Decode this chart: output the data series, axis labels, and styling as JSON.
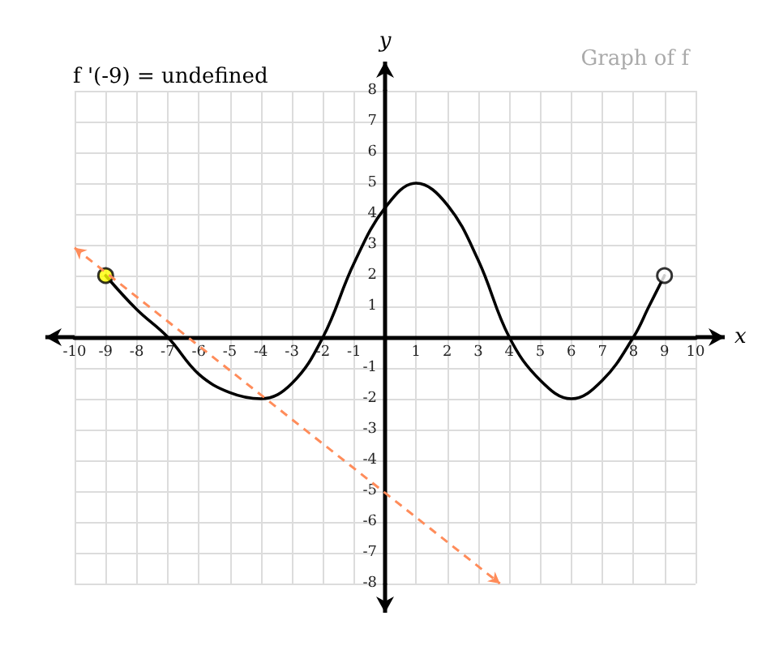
{
  "chart_data": {
    "type": "line",
    "title": "f '(-9) = undefined",
    "xlabel": "x",
    "ylabel": "y",
    "annotations": [
      "Graph of f"
    ],
    "xlim": [
      -10,
      10
    ],
    "ylim": [
      -8,
      8
    ],
    "xticks": [
      -10,
      -9,
      -8,
      -7,
      -6,
      -5,
      -4,
      -3,
      -2,
      -1,
      {
        "value": 0,
        "label": null
      },
      1,
      2,
      3,
      4,
      5,
      6,
      7,
      8,
      9,
      10
    ],
    "yticks": [
      -8,
      -7,
      -6,
      -5,
      -4,
      -3,
      -2,
      -1,
      {
        "value": 0,
        "label": null
      },
      1,
      2,
      3,
      4,
      5,
      6,
      7,
      8
    ],
    "grid": true,
    "marker": "none",
    "series": [
      {
        "color": "#000000",
        "x": [
          -9,
          -8,
          -7,
          -6,
          -5,
          -4,
          -3,
          -2,
          -1,
          0,
          1,
          2,
          3,
          4,
          5,
          6,
          7,
          8,
          8.5,
          9
        ],
        "values": [
          2,
          0.9,
          0,
          -1.2,
          -1.8,
          -2,
          -1.5,
          0,
          2.4,
          4.2,
          5,
          4.3,
          2.5,
          0,
          -1.4,
          -2,
          -1.4,
          0,
          1,
          2
        ]
      },
      {
        "color": "#ff8c5a",
        "line_style": "dashed",
        "x": [
          -10,
          3.7
        ],
        "values": [
          2.9,
          -8
        ]
      },
      {
        "type": "scatter",
        "marker": "circle",
        "color": "#ffff00",
        "x": [
          -9
        ],
        "values": [
          2
        ]
      },
      {
        "type": "scatter",
        "marker": "circle",
        "color": "#ffffff",
        "x": [
          9
        ],
        "values": [
          2
        ]
      }
    ]
  }
}
